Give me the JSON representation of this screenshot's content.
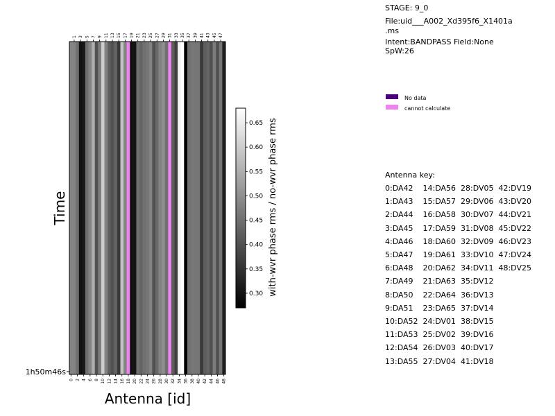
{
  "info": {
    "stage": "STAGE: 9_0",
    "file_line1": "File:uid___A002_Xd395f6_X1401a",
    "file_line2": ".ms",
    "intent": "Intent:BANDPASS Field:None",
    "spw": "SpW:26"
  },
  "legend": [
    {
      "label": "No data",
      "color": "#4b0082"
    },
    {
      "label": "cannot calculate",
      "color": "#ee82ee"
    }
  ],
  "antenna_key": {
    "title": "Antenna key:",
    "rows": [
      "0:DA42    14:DA56  28:DV05  42:DV19",
      "1:DA43    15:DA57  29:DV06  43:DV20",
      "2:DA44    16:DA58  30:DV07  44:DV21",
      "3:DA45    17:DA59  31:DV08  45:DV22",
      "4:DA46    18:DA60  32:DV09  46:DV23",
      "5:DA47    19:DA61  33:DV10  47:DV24",
      "6:DA48    20:DA62  34:DV11  48:DV25",
      "7:DA49    21:DA63  35:DV12",
      "8:DA50    22:DA64  36:DV13",
      "9:DA51    23:DA65  37:DV14",
      "10:DA52  24:DV01  38:DV15",
      "11:DA53  25:DV02  39:DV16",
      "12:DA54  26:DV03  40:DV17",
      "13:DA55  27:DV04  41:DV18"
    ]
  },
  "chart_data": {
    "type": "heatmap",
    "xlabel": "Antenna [id]",
    "ylabel": "Time",
    "y_tick_label": "1h50m46s",
    "x_ticks_bottom": [
      0,
      2,
      4,
      6,
      8,
      10,
      12,
      14,
      16,
      18,
      20,
      22,
      24,
      26,
      28,
      30,
      32,
      34,
      36,
      38,
      40,
      42,
      44,
      46,
      48
    ],
    "x_ticks_top": [
      1,
      3,
      5,
      7,
      9,
      11,
      13,
      15,
      17,
      19,
      21,
      23,
      25,
      27,
      29,
      31,
      33,
      35,
      37,
      39,
      41,
      43,
      45,
      47
    ],
    "colorbar": {
      "label": "with-wvr phase rms / no-wvr phase rms",
      "min": 0.27,
      "max": 0.68,
      "ticks": [
        "0.30",
        "0.35",
        "0.40",
        "0.45",
        "0.50",
        "0.55",
        "0.60",
        "0.65"
      ],
      "colormap": "gray"
    },
    "values": [
      0.48,
      0.48,
      0.45,
      0.3,
      0.31,
      0.45,
      0.48,
      0.55,
      0.4,
      0.47,
      0.6,
      0.48,
      0.42,
      0.4,
      0.43,
      0.36,
      0.58,
      0.48,
      "cannot calculate",
      0.3,
      0.3,
      0.45,
      0.43,
      0.45,
      0.46,
      0.48,
      0.4,
      0.44,
      0.48,
      0.5,
      0.45,
      "cannot calculate",
      0.42,
      0.37,
      0.66,
      0.68,
      0.27,
      0.45,
      0.46,
      0.46,
      0.46,
      0.36,
      0.42,
      0.43,
      0.4,
      0.47,
      0.4,
      0.46,
      0.32
    ]
  }
}
